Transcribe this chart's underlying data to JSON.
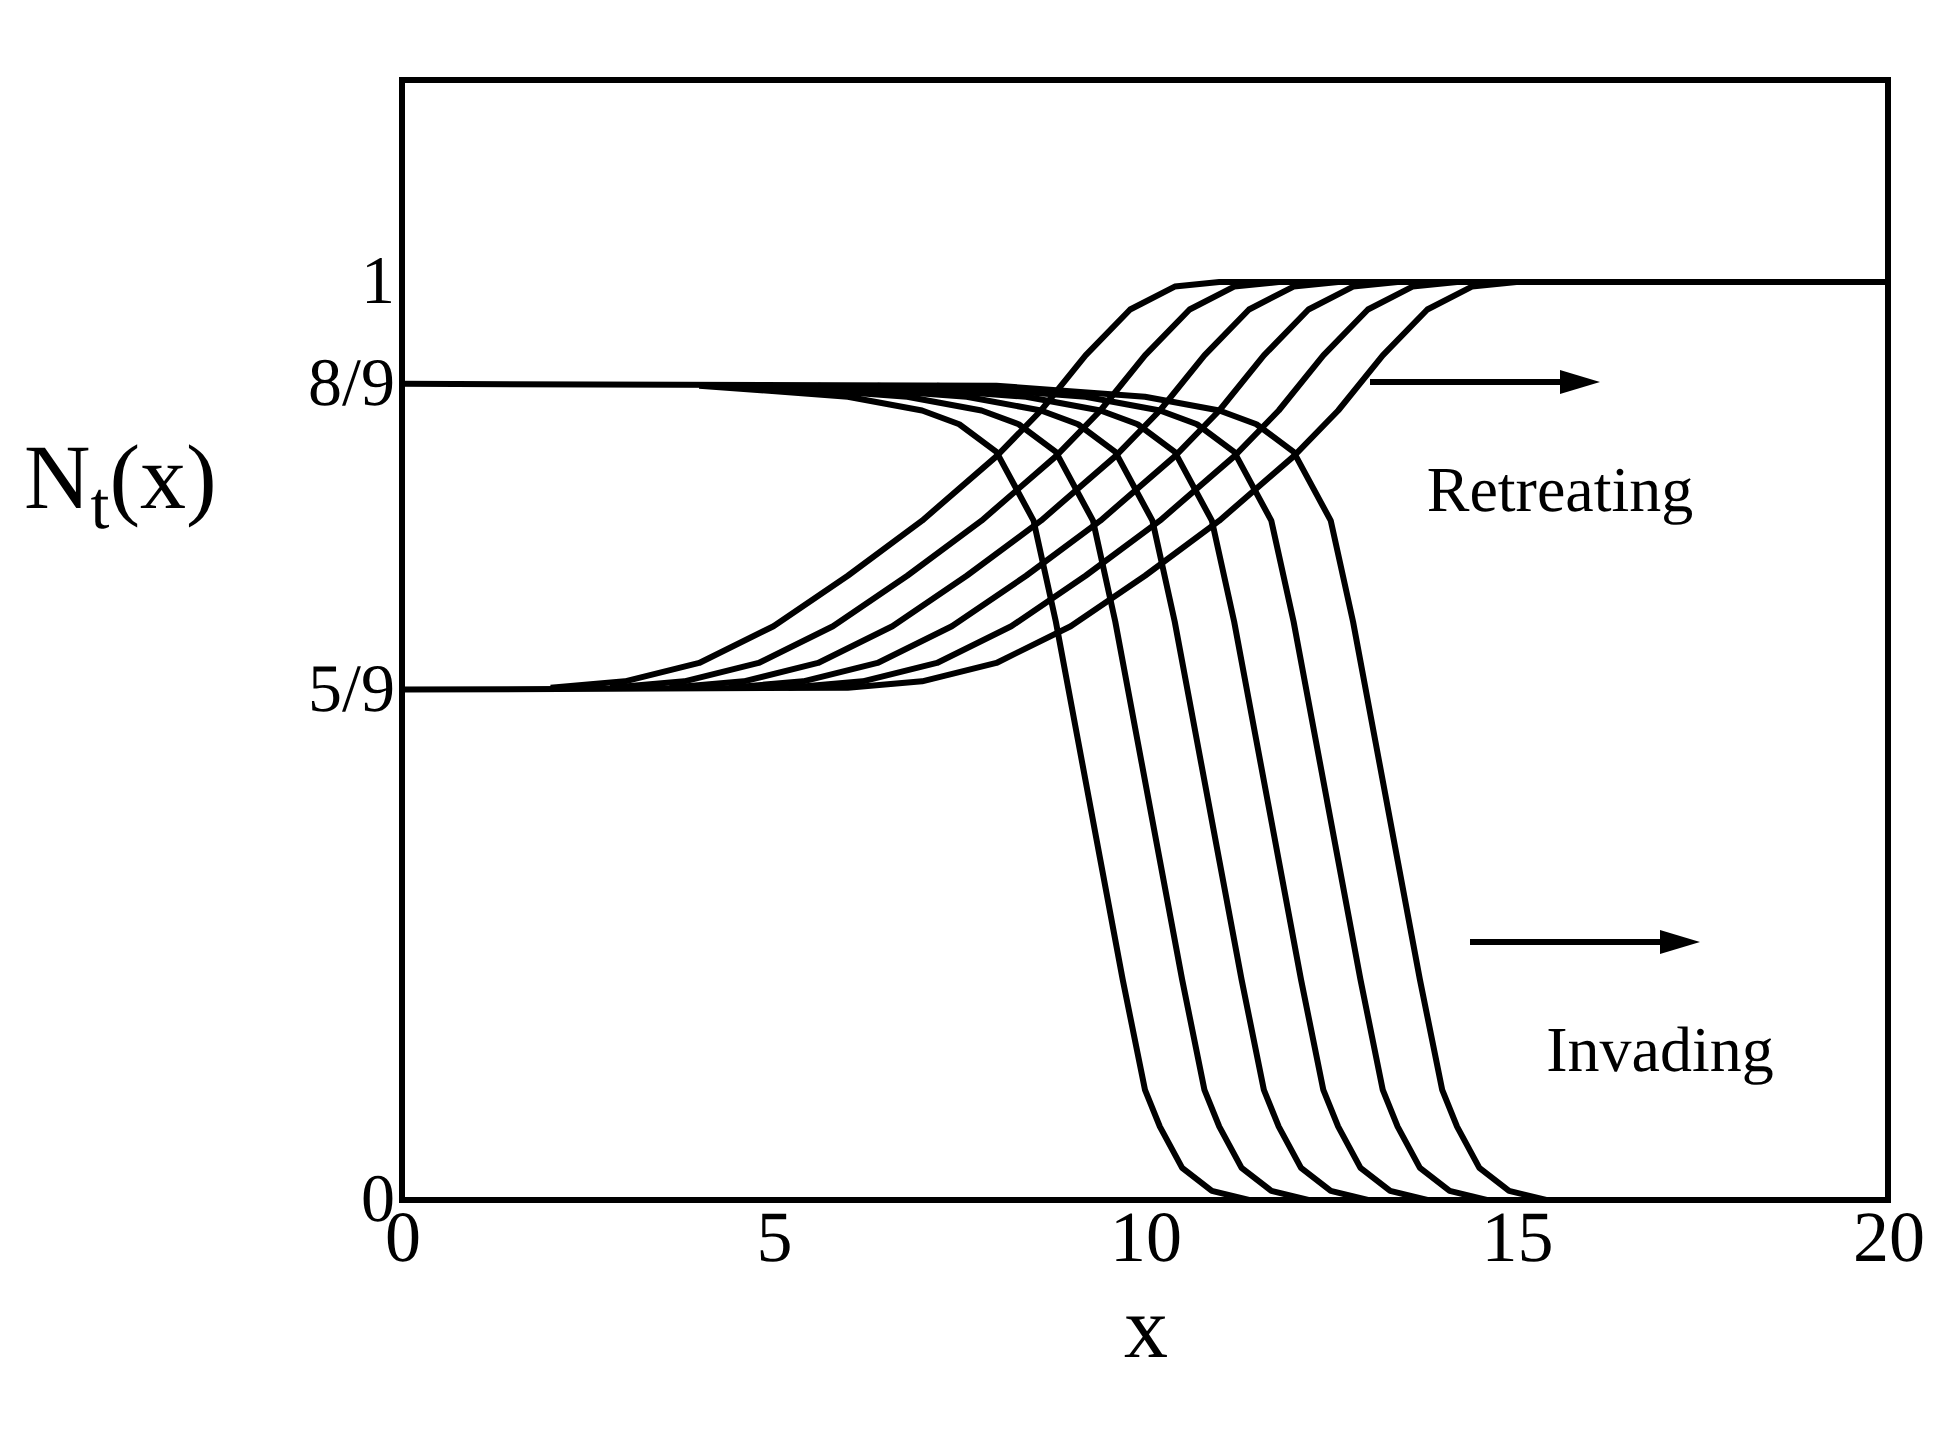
{
  "chart_data": {
    "type": "line",
    "xlabel": "x",
    "ylabel": "N$_{t}$(x)",
    "xlim": [
      0,
      20
    ],
    "xticks": [
      0,
      5,
      10,
      15,
      20
    ],
    "ylim": [
      0,
      1.22
    ],
    "yticks": [
      0,
      {
        "value": 0.5556,
        "label": "5/9"
      },
      {
        "value": 0.8889,
        "label": "8/9"
      },
      1
    ],
    "grid": false,
    "marker": "none",
    "line_style": "solid",
    "annotations": [
      "Retreating",
      "Invading"
    ],
    "series": [
      {
        "color": "#000000",
        "x": [
          2,
          3,
          4,
          5,
          6,
          7,
          8,
          8.6,
          9.2,
          9.8,
          10.4,
          11,
          20
        ],
        "values": [
          0.558,
          0.565,
          0.585,
          0.625,
          0.68,
          0.74,
          0.81,
          0.86,
          0.92,
          0.97,
          0.995,
          1,
          1
        ]
      },
      {
        "color": "#000000",
        "x": [
          2.8,
          3.8,
          4.8,
          5.8,
          6.8,
          7.8,
          8.8,
          9.4,
          10,
          10.6,
          11.2,
          11.8
        ],
        "values": [
          0.558,
          0.565,
          0.585,
          0.625,
          0.68,
          0.74,
          0.81,
          0.86,
          0.92,
          0.97,
          0.995,
          1
        ]
      },
      {
        "color": "#000000",
        "x": [
          3.6,
          4.6,
          5.6,
          6.6,
          7.6,
          8.6,
          9.6,
          10.2,
          10.8,
          11.4,
          12,
          12.6
        ],
        "values": [
          0.558,
          0.565,
          0.585,
          0.625,
          0.68,
          0.74,
          0.81,
          0.86,
          0.92,
          0.97,
          0.995,
          1
        ]
      },
      {
        "color": "#000000",
        "x": [
          4.4,
          5.4,
          6.4,
          7.4,
          8.4,
          9.4,
          10.4,
          11,
          11.6,
          12.2,
          12.8,
          13.4
        ],
        "values": [
          0.558,
          0.565,
          0.585,
          0.625,
          0.68,
          0.74,
          0.81,
          0.86,
          0.92,
          0.97,
          0.995,
          1
        ]
      },
      {
        "color": "#000000",
        "x": [
          5.2,
          6.2,
          7.2,
          8.2,
          9.2,
          10.2,
          11.2,
          11.8,
          12.4,
          13,
          13.6,
          14.2
        ],
        "values": [
          0.558,
          0.565,
          0.585,
          0.625,
          0.68,
          0.74,
          0.81,
          0.86,
          0.92,
          0.97,
          0.995,
          1
        ]
      },
      {
        "color": "#000000",
        "x": [
          0,
          6,
          7,
          8,
          9,
          10,
          11,
          12,
          12.6,
          13.2,
          13.8,
          14.4,
          15
        ],
        "values": [
          0.556,
          0.558,
          0.565,
          0.585,
          0.625,
          0.68,
          0.74,
          0.81,
          0.86,
          0.92,
          0.97,
          0.995,
          1
        ]
      },
      {
        "color": "#000000",
        "x": [
          4,
          6,
          7,
          7.5,
          8,
          8.5,
          8.8,
          9.1,
          9.4,
          9.7,
          10,
          10.2,
          10.5,
          10.9,
          11.4,
          20
        ],
        "values": [
          0.887,
          0.875,
          0.86,
          0.845,
          0.815,
          0.74,
          0.63,
          0.5,
          0.37,
          0.24,
          0.12,
          0.08,
          0.035,
          0.01,
          0,
          0
        ]
      },
      {
        "color": "#000000",
        "x": [
          4.8,
          6.8,
          7.8,
          8.3,
          8.8,
          9.3,
          9.6,
          9.9,
          10.2,
          10.5,
          10.8,
          11,
          11.3,
          11.7,
          12.2
        ],
        "values": [
          0.887,
          0.875,
          0.86,
          0.845,
          0.815,
          0.74,
          0.63,
          0.5,
          0.37,
          0.24,
          0.12,
          0.08,
          0.035,
          0.01,
          0
        ]
      },
      {
        "color": "#000000",
        "x": [
          5.6,
          7.6,
          8.6,
          9.1,
          9.6,
          10.1,
          10.4,
          10.7,
          11,
          11.3,
          11.6,
          11.8,
          12.1,
          12.5,
          13
        ],
        "values": [
          0.887,
          0.875,
          0.86,
          0.845,
          0.815,
          0.74,
          0.63,
          0.5,
          0.37,
          0.24,
          0.12,
          0.08,
          0.035,
          0.01,
          0
        ]
      },
      {
        "color": "#000000",
        "x": [
          6.4,
          8.4,
          9.4,
          9.9,
          10.4,
          10.9,
          11.2,
          11.5,
          11.8,
          12.1,
          12.4,
          12.6,
          12.9,
          13.3,
          13.8
        ],
        "values": [
          0.887,
          0.875,
          0.86,
          0.845,
          0.815,
          0.74,
          0.63,
          0.5,
          0.37,
          0.24,
          0.12,
          0.08,
          0.035,
          0.01,
          0
        ]
      },
      {
        "color": "#000000",
        "x": [
          7.2,
          9.2,
          10.2,
          10.7,
          11.2,
          11.7,
          12,
          12.3,
          12.6,
          12.9,
          13.2,
          13.4,
          13.7,
          14.1,
          14.6
        ],
        "values": [
          0.887,
          0.875,
          0.86,
          0.845,
          0.815,
          0.74,
          0.63,
          0.5,
          0.37,
          0.24,
          0.12,
          0.08,
          0.035,
          0.01,
          0
        ]
      },
      {
        "color": "#000000",
        "x": [
          0,
          8,
          10,
          11,
          11.5,
          12,
          12.5,
          12.8,
          13.1,
          13.4,
          13.7,
          14,
          14.2,
          14.5,
          14.9,
          15.4
        ],
        "values": [
          0.889,
          0.887,
          0.875,
          0.86,
          0.845,
          0.815,
          0.74,
          0.63,
          0.5,
          0.37,
          0.24,
          0.12,
          0.08,
          0.035,
          0.01,
          0
        ]
      }
    ]
  }
}
